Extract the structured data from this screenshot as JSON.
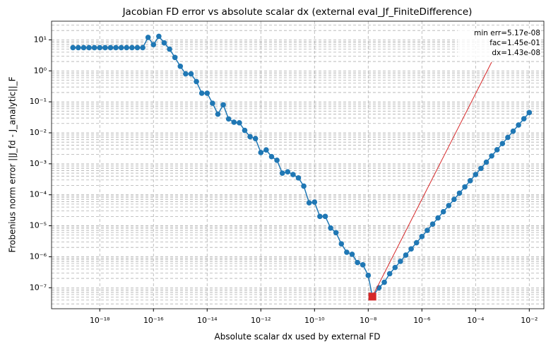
{
  "chart_data": {
    "type": "line",
    "log_x": true,
    "log_y": true,
    "title": "Jacobian FD error vs absolute scalar dx (external eval_Jf_FiniteDifference)",
    "x_label": "Absolute scalar dx used by external FD",
    "y_label": "Frobenius norm error ||J_fd - J_analytic||_F",
    "x": [
      1e-19,
      1.585e-19,
      2.512e-19,
      3.981e-19,
      6.31e-19,
      1e-18,
      1.585e-18,
      2.512e-18,
      3.981e-18,
      6.31e-18,
      1e-17,
      1.585e-17,
      2.512e-17,
      3.981e-17,
      6.31e-17,
      1e-16,
      1.585e-16,
      2.512e-16,
      3.981e-16,
      6.31e-16,
      1e-15,
      1.585e-15,
      2.512e-15,
      3.981e-15,
      6.31e-15,
      1e-14,
      1.585e-14,
      2.512e-14,
      3.981e-14,
      6.31e-14,
      1e-13,
      1.585e-13,
      2.512e-13,
      3.981e-13,
      6.31e-13,
      1e-12,
      1.585e-12,
      2.512e-12,
      3.981e-12,
      6.31e-12,
      1e-11,
      1.585e-11,
      2.512e-11,
      3.981e-11,
      6.31e-11,
      1e-10,
      1.585e-10,
      2.512e-10,
      3.981e-10,
      6.31e-10,
      1e-09,
      1.585e-09,
      2.512e-09,
      3.981e-09,
      6.31e-09,
      1e-08,
      1.43e-08,
      2.512e-08,
      3.981e-08,
      6.31e-08,
      1e-07,
      1.585e-07,
      2.512e-07,
      3.981e-07,
      6.31e-07,
      1e-06,
      1.585e-06,
      2.512e-06,
      3.981e-06,
      6.31e-06,
      1e-05,
      1.585e-05,
      2.512e-05,
      3.981e-05,
      6.31e-05,
      0.0001,
      0.0001585,
      0.0002512,
      0.0003981,
      0.000631,
      0.001,
      0.001585,
      0.002512,
      0.003981,
      0.00631,
      0.01
    ],
    "series": [
      {
        "color": "#1f77b4",
        "values": [
          5.6,
          5.6,
          5.6,
          5.6,
          5.6,
          5.6,
          5.6,
          5.6,
          5.6,
          5.6,
          5.6,
          5.6,
          5.6,
          5.6,
          12,
          7,
          13,
          8,
          5,
          2.7,
          1.4,
          0.8,
          0.8,
          0.45,
          0.19,
          0.19,
          0.09,
          0.04,
          0.08,
          0.028,
          0.022,
          0.021,
          0.012,
          0.0075,
          0.0065,
          0.0023,
          0.0028,
          0.0017,
          0.0013,
          0.0005,
          0.00055,
          0.00045,
          0.00035,
          0.00019,
          5.5e-05,
          5.8e-05,
          2e-05,
          2e-05,
          8.5e-06,
          6e-06,
          2.6e-06,
          1.4e-06,
          1.2e-06,
          6.5e-07,
          5.5e-07,
          2.5e-07,
          5.17e-08,
          1e-07,
          1.5e-07,
          2.84e-07,
          4.5e-07,
          7.1e-07,
          1.13e-06,
          1.79e-06,
          2.84e-06,
          4.5e-06,
          7.1e-06,
          1.13e-05,
          1.79e-05,
          2.84e-05,
          4.5e-05,
          7.1e-05,
          0.000113,
          0.000179,
          0.000284,
          0.00045,
          0.00071,
          0.00113,
          0.00179,
          0.00284,
          0.0045,
          0.0071,
          0.0113,
          0.0179,
          0.0284,
          0.045
        ]
      }
    ],
    "min_index": 56,
    "min_color": "#d62728",
    "annotation": [
      "min err=5.17e-08",
      "fac=1.45e-01",
      "dx=1.43e-08"
    ],
    "xlim": [
      1.6e-20,
      0.035
    ],
    "ylim": [
      2.1e-08,
      40
    ],
    "xticks": [
      {
        "value": 1e-18,
        "label": "10⁻¹⁸"
      },
      {
        "value": 1e-16,
        "label": "10⁻¹⁶"
      },
      {
        "value": 1e-14,
        "label": "10⁻¹⁴"
      },
      {
        "value": 1e-12,
        "label": "10⁻¹²"
      },
      {
        "value": 1e-10,
        "label": "10⁻¹⁰"
      },
      {
        "value": 1e-08,
        "label": "10⁻⁸"
      },
      {
        "value": 1e-06,
        "label": "10⁻⁶"
      },
      {
        "value": 0.0001,
        "label": "10⁻⁴"
      },
      {
        "value": 0.01,
        "label": "10⁻²"
      }
    ],
    "yticks": [
      {
        "value": 1e-07,
        "label": "10⁻⁷"
      },
      {
        "value": 1e-06,
        "label": "10⁻⁶"
      },
      {
        "value": 1e-05,
        "label": "10⁻⁵"
      },
      {
        "value": 0.0001,
        "label": "10⁻⁴"
      },
      {
        "value": 0.001,
        "label": "10⁻³"
      },
      {
        "value": 0.01,
        "label": "10⁻²"
      },
      {
        "value": 0.1,
        "label": "10⁻¹"
      },
      {
        "value": 1,
        "label": "10⁰"
      },
      {
        "value": 10,
        "label": "10¹"
      }
    ],
    "grid": true
  }
}
